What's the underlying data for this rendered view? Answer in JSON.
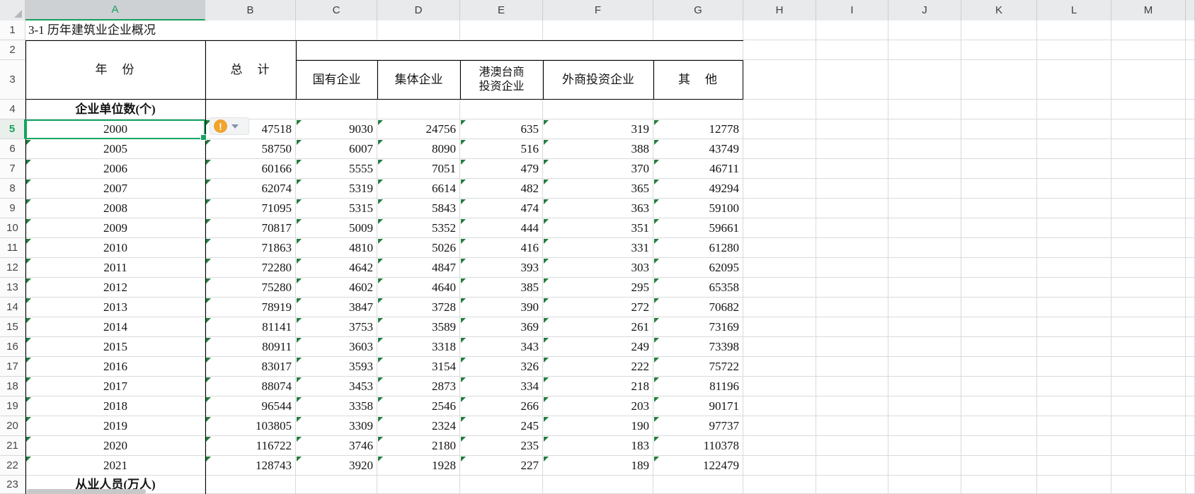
{
  "sheet": {
    "title_cell": "3-1 历年建筑业企业概况",
    "column_letters": [
      "A",
      "B",
      "C",
      "D",
      "E",
      "F",
      "G",
      "H",
      "I",
      "J",
      "K",
      "L",
      "M"
    ],
    "row_numbers": [
      "1",
      "2",
      "3",
      "4",
      "5",
      "6",
      "7",
      "8",
      "9",
      "10",
      "11",
      "12",
      "13",
      "14",
      "15",
      "16",
      "17",
      "18",
      "19",
      "20",
      "21",
      "22",
      "23"
    ],
    "header": {
      "year": "年　份",
      "total": "总　计",
      "sub": [
        "国有企业",
        "集体企业",
        "港澳台商\n投资企业",
        "外商投资企业",
        "其　他"
      ]
    },
    "section1_label": "企业单位数(个)",
    "section2_label": "从业人员(万人)",
    "rows": [
      {
        "year": "2000",
        "values": [
          "47518",
          "9030",
          "24756",
          "635",
          "319",
          "12778"
        ]
      },
      {
        "year": "2005",
        "values": [
          "58750",
          "6007",
          "8090",
          "516",
          "388",
          "43749"
        ]
      },
      {
        "year": "2006",
        "values": [
          "60166",
          "5555",
          "7051",
          "479",
          "370",
          "46711"
        ]
      },
      {
        "year": "2007",
        "values": [
          "62074",
          "5319",
          "6614",
          "482",
          "365",
          "49294"
        ]
      },
      {
        "year": "2008",
        "values": [
          "71095",
          "5315",
          "5843",
          "474",
          "363",
          "59100"
        ]
      },
      {
        "year": "2009",
        "values": [
          "70817",
          "5009",
          "5352",
          "444",
          "351",
          "59661"
        ]
      },
      {
        "year": "2010",
        "values": [
          "71863",
          "4810",
          "5026",
          "416",
          "331",
          "61280"
        ]
      },
      {
        "year": "2011",
        "values": [
          "72280",
          "4642",
          "4847",
          "393",
          "303",
          "62095"
        ]
      },
      {
        "year": "2012",
        "values": [
          "75280",
          "4602",
          "4640",
          "385",
          "295",
          "65358"
        ]
      },
      {
        "year": "2013",
        "values": [
          "78919",
          "3847",
          "3728",
          "390",
          "272",
          "70682"
        ]
      },
      {
        "year": "2014",
        "values": [
          "81141",
          "3753",
          "3589",
          "369",
          "261",
          "73169"
        ]
      },
      {
        "year": "2015",
        "values": [
          "80911",
          "3603",
          "3318",
          "343",
          "249",
          "73398"
        ]
      },
      {
        "year": "2016",
        "values": [
          "83017",
          "3593",
          "3154",
          "326",
          "222",
          "75722"
        ]
      },
      {
        "year": "2017",
        "values": [
          "88074",
          "3453",
          "2873",
          "334",
          "218",
          "81196"
        ]
      },
      {
        "year": "2018",
        "values": [
          "96544",
          "3358",
          "2546",
          "266",
          "203",
          "90171"
        ]
      },
      {
        "year": "2019",
        "values": [
          "103805",
          "3309",
          "2324",
          "245",
          "190",
          "97737"
        ]
      },
      {
        "year": "2020",
        "values": [
          "116722",
          "3746",
          "2180",
          "235",
          "183",
          "110378"
        ]
      },
      {
        "year": "2021",
        "values": [
          "128743",
          "3920",
          "1928",
          "227",
          "189",
          "122479"
        ]
      }
    ],
    "selection": {
      "active_cell": "A5",
      "active_value": "2000"
    },
    "error_button": {
      "symbol": "!"
    },
    "colors": {
      "accent_green": "#17a05e",
      "error_triangle_green": "#237c3e",
      "warning_orange": "#f0a32d",
      "gridline": "#d9dadc",
      "header_bg": "#e8eaec",
      "selected_header_bg": "#ced1d4"
    }
  }
}
